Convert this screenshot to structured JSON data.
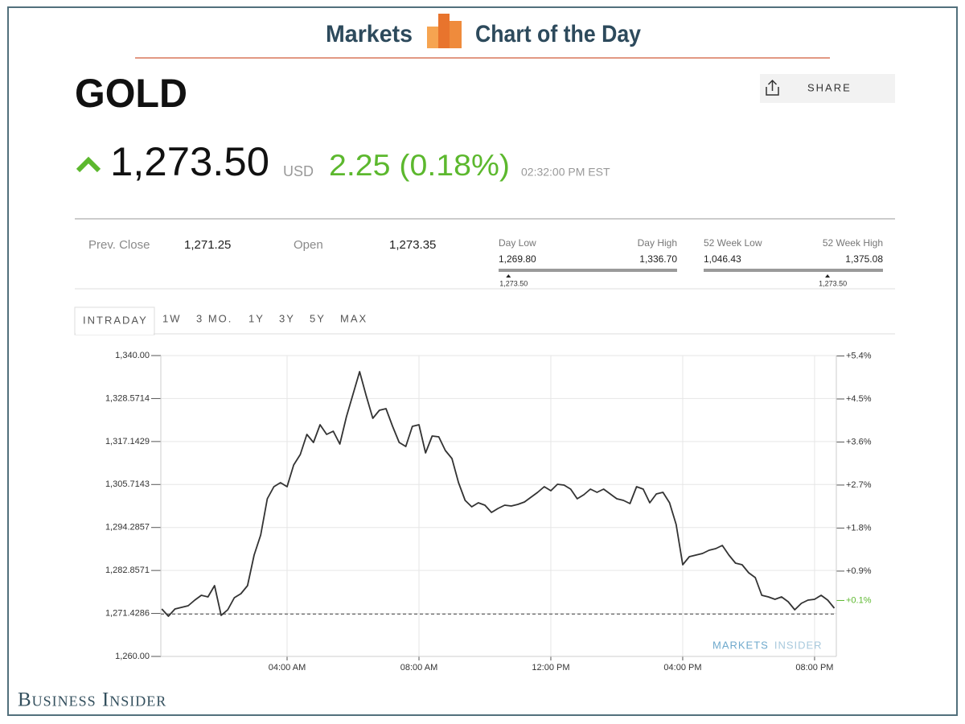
{
  "header": {
    "left": "Markets",
    "right": "Chart of the Day"
  },
  "quote": {
    "name": "GOLD",
    "share": "SHARE",
    "price": "1,273.50",
    "currency": "USD",
    "change": "2.25 (0.18%)",
    "time": "02:32:00 PM EST"
  },
  "stats": {
    "prev_close_label": "Prev. Close",
    "prev_close": "1,271.25",
    "open_label": "Open",
    "open": "1,273.35",
    "day": {
      "low_label": "Day Low",
      "high_label": "Day High",
      "low": {
        "value": 1269.8,
        "label": "1,269.80"
      },
      "high": {
        "value": 1336.7,
        "label": "1,336.70"
      },
      "current": {
        "value": 1273.5,
        "label": "1,273.50"
      }
    },
    "week52": {
      "low_label": "52 Week Low",
      "high_label": "52 Week High",
      "low": {
        "value": 1046.43,
        "label": "1,046.43"
      },
      "high": {
        "value": 1375.08,
        "label": "1,375.08"
      },
      "current": {
        "value": 1273.5,
        "label": "1,273.50"
      }
    }
  },
  "tabs": [
    "INTRADAY",
    "1W",
    "3 MO.",
    "1Y",
    "3Y",
    "5Y",
    "MAX"
  ],
  "chart_data": {
    "type": "line",
    "color": "#333333",
    "grid": true,
    "x": [
      0.2,
      0.4,
      0.6,
      0.8,
      1.0,
      1.2,
      1.4,
      1.6,
      1.8,
      2.0,
      2.2,
      2.4,
      2.6,
      2.8,
      3.0,
      3.2,
      3.4,
      3.6,
      3.8,
      4.0,
      4.2,
      4.4,
      4.6,
      4.8,
      5.0,
      5.2,
      5.4,
      5.6,
      5.8,
      6.0,
      6.2,
      6.4,
      6.6,
      6.8,
      7.0,
      7.2,
      7.4,
      7.6,
      7.8,
      8.0,
      8.2,
      8.4,
      8.6,
      8.8,
      9.0,
      9.2,
      9.4,
      9.6,
      9.8,
      10.0,
      10.2,
      10.4,
      10.6,
      10.8,
      11.0,
      11.2,
      11.4,
      11.6,
      11.8,
      12.0,
      12.2,
      12.4,
      12.6,
      12.8,
      13.0,
      13.2,
      13.4,
      13.6,
      13.8,
      14.0,
      14.2,
      14.4,
      14.6,
      14.8,
      15.0,
      15.2,
      15.4,
      15.6,
      15.8,
      16.0,
      16.2,
      16.4,
      16.6,
      16.8,
      17.0,
      17.2,
      17.4,
      17.6,
      17.8,
      18.0,
      18.2,
      18.4,
      18.6,
      18.8,
      19.0,
      19.2,
      19.4,
      19.6,
      19.8,
      20.0,
      20.2,
      20.4,
      20.6
    ],
    "values": [
      1272.62,
      1270.7,
      1272.62,
      1273.05,
      1273.48,
      1274.97,
      1276.26,
      1275.83,
      1278.82,
      1270.91,
      1272.41,
      1275.61,
      1276.68,
      1278.82,
      1286.95,
      1292.3,
      1301.92,
      1305.13,
      1306.2,
      1305.13,
      1310.91,
      1313.69,
      1319.04,
      1316.9,
      1321.6,
      1319.04,
      1319.89,
      1316.47,
      1323.74,
      1329.73,
      1335.72,
      1329.3,
      1323.31,
      1325.45,
      1325.88,
      1321.18,
      1316.9,
      1315.83,
      1321.18,
      1321.6,
      1314.12,
      1318.61,
      1318.39,
      1314.76,
      1312.62,
      1306.2,
      1301.5,
      1299.79,
      1300.85,
      1300.21,
      1298.29,
      1299.36,
      1300.21,
      1300.0,
      1300.43,
      1301.07,
      1302.35,
      1303.64,
      1305.13,
      1304.06,
      1305.77,
      1305.56,
      1304.49,
      1301.92,
      1302.99,
      1304.49,
      1303.64,
      1304.49,
      1303.21,
      1301.92,
      1301.5,
      1300.64,
      1305.13,
      1304.49,
      1300.85,
      1303.21,
      1303.64,
      1300.85,
      1295.08,
      1284.38,
      1286.52,
      1286.95,
      1287.38,
      1288.23,
      1288.66,
      1289.52,
      1286.95,
      1284.81,
      1284.38,
      1282.25,
      1280.96,
      1276.26,
      1275.83,
      1275.19,
      1275.83,
      1274.55,
      1272.41,
      1274.12,
      1274.97,
      1275.19,
      1276.26,
      1274.97,
      1272.83
    ],
    "xlim": [
      0.17,
      20.66
    ],
    "xticks": [
      {
        "value": 4,
        "label": "04:00 AM"
      },
      {
        "value": 8,
        "label": "08:00 AM"
      },
      {
        "value": 12,
        "label": "12:00 PM"
      },
      {
        "value": 16,
        "label": "04:00 PM"
      },
      {
        "value": 20,
        "label": "08:00 PM"
      }
    ],
    "ylim": [
      1260,
      1340
    ],
    "yticks": [
      {
        "value": 1260,
        "label": "1,260.00"
      },
      {
        "value": 1271.4286,
        "label": "1,271.4286"
      },
      {
        "value": 1282.8571,
        "label": "1,282.8571"
      },
      {
        "value": 1294.2857,
        "label": "1,294.2857"
      },
      {
        "value": 1305.7143,
        "label": "1,305.7143"
      },
      {
        "value": 1317.1429,
        "label": "1,317.1429"
      },
      {
        "value": 1328.5714,
        "label": "1,328.5714"
      },
      {
        "value": 1340,
        "label": "1,340.00"
      }
    ],
    "y2lim": [
      -0.885,
      5.408
    ],
    "y2ticks": [
      {
        "value": 0.9,
        "label": "+0.9%"
      },
      {
        "value": 1.8,
        "label": "+1.8%"
      },
      {
        "value": 2.7,
        "label": "+2.7%"
      },
      {
        "value": 3.6,
        "label": "+3.6%"
      },
      {
        "value": 4.5,
        "label": "+4.5%"
      },
      {
        "value": 5.4,
        "label": "+5.4%"
      }
    ],
    "y2_marker": {
      "value": 0.1,
      "label": "+0.1%",
      "color": "#5cb82e"
    },
    "reference_line": 1271.25,
    "watermark": [
      "MARKETS",
      "INSIDER"
    ]
  },
  "footer": "Business Insider"
}
